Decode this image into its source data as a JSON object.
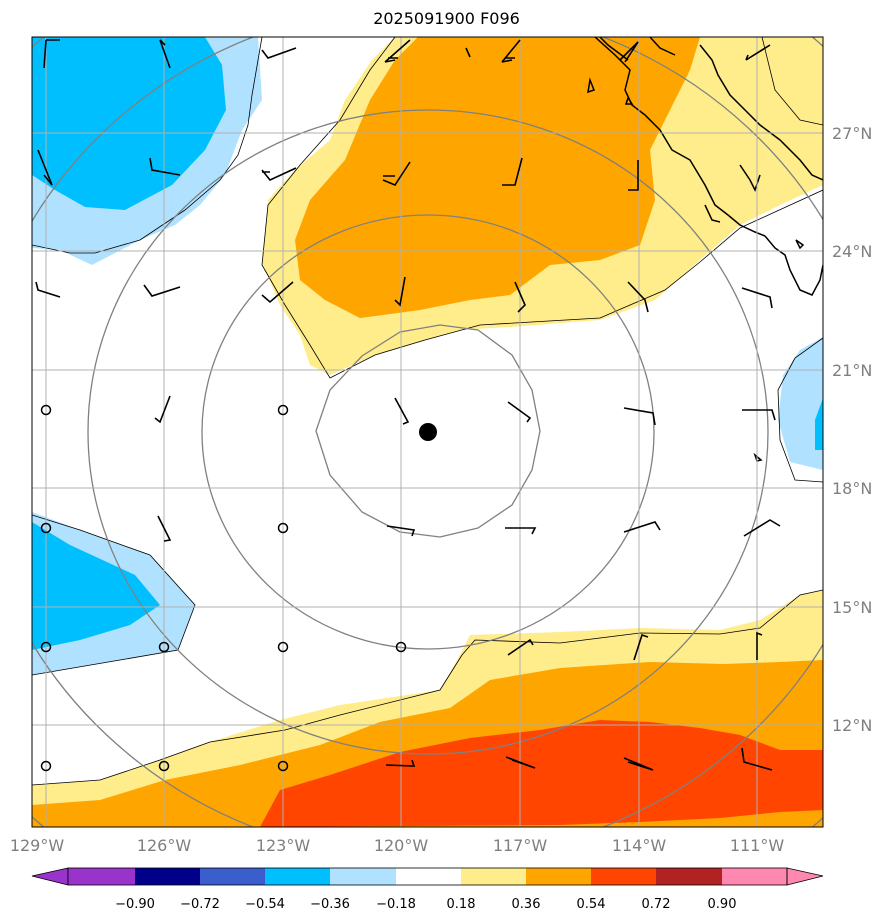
{
  "title": "2025091900 F096",
  "map": {
    "lat_labels": [
      "27°N",
      "24°N",
      "21°N",
      "18°N",
      "15°N",
      "12°N"
    ],
    "lon_labels": [
      "129°W",
      "126°W",
      "123°W",
      "120°W",
      "117°W",
      "114°W",
      "111°W"
    ],
    "center_marker": "storm-center-dot"
  },
  "colorbar": {
    "levels": [
      "−0.90",
      "−0.72",
      "−0.54",
      "−0.36",
      "−0.18",
      "0.18",
      "0.36",
      "0.54",
      "0.72",
      "0.90"
    ],
    "colors": [
      "#9933cc",
      "#00008b",
      "#3a5fcd",
      "#00bfff",
      "#b0e2ff",
      "#ffffff",
      "#ffec8b",
      "#ffa500",
      "#ff4500",
      "#b22222",
      "#ff88b0",
      "#ff88b0"
    ]
  }
}
